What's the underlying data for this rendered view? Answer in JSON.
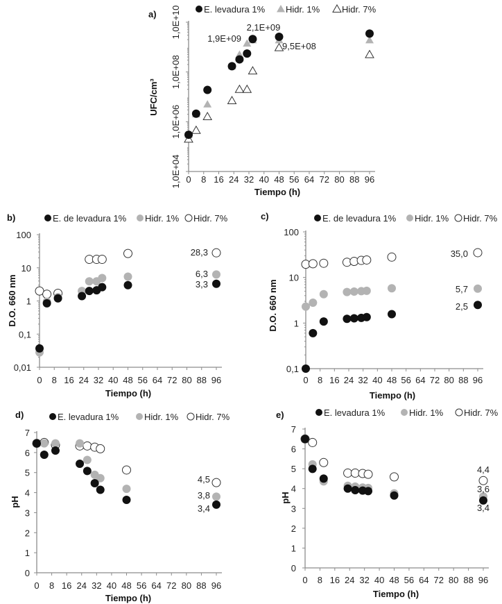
{
  "colors": {
    "e_levadura": "#111111",
    "hidr_1": "#b3b3b3",
    "hidr_7": "#ffffff",
    "axis": "#8c8c8c"
  },
  "chart_data": [
    {
      "panel": "a)",
      "type": "scatter",
      "xlabel": "Tiempo (h)",
      "ylabel": "UFC/cm³",
      "xlim": [
        0,
        96
      ],
      "xticks": [
        0,
        8,
        16,
        24,
        32,
        40,
        48,
        56,
        64,
        72,
        80,
        88,
        96
      ],
      "yscale": "log",
      "ylim": [
        10000,
        10000000000
      ],
      "yticks": [
        "1,0E+04",
        "1,0E+06",
        "1,0E+08",
        "1,0E+10"
      ],
      "ytick_values": [
        10000,
        1000000,
        100000000,
        10000000000
      ],
      "legend": "top",
      "series": [
        {
          "name": "E. levadura 1%",
          "marker": "filled-circle-black",
          "x": [
            0,
            4,
            10,
            23,
            27,
            31,
            34,
            48,
            96
          ],
          "y": [
            300000,
            2100000,
            19000000,
            170000000,
            320000000,
            550000000,
            2100000000,
            2600000000,
            3500000000
          ]
        },
        {
          "name": "Hidr. 1%",
          "marker": "filled-triangle-gray",
          "x": [
            0,
            4,
            10,
            23,
            27,
            31,
            34,
            48,
            96
          ],
          "y": [
            300000,
            2000000,
            5000000,
            170000000,
            500000000,
            1400000000,
            1900000000,
            1900000000,
            1900000000
          ]
        },
        {
          "name": "Hidr. 7%",
          "marker": "open-triangle",
          "x": [
            0,
            4,
            10,
            23,
            27,
            31,
            34,
            48,
            96
          ],
          "y": [
            200000,
            450000,
            1600000,
            7000000,
            20000000,
            20000000,
            110000000,
            950000000,
            500000000
          ]
        }
      ],
      "annotations": [
        {
          "text": "1,9E+09"
        },
        {
          "text": "2,1E+09"
        },
        {
          "text": "9,5E+08"
        }
      ]
    },
    {
      "panel": "b)",
      "type": "scatter",
      "xlabel": "Tiempo (h)",
      "ylabel": "D.O. 660 nm",
      "xlim": [
        0,
        96
      ],
      "xticks": [
        0,
        8,
        16,
        24,
        32,
        40,
        48,
        56,
        64,
        72,
        80,
        88,
        96
      ],
      "yscale": "log",
      "ylim": [
        0.01,
        100
      ],
      "yticks": [
        "0,01",
        "0,1",
        "1",
        "10",
        "100"
      ],
      "ytick_values": [
        0.01,
        0.1,
        1,
        10,
        100
      ],
      "legend": "top",
      "series": [
        {
          "name": "E. de levadura 1%",
          "marker": "filled-circle-black",
          "x": [
            0,
            4,
            10,
            23,
            27,
            31,
            34,
            48,
            96
          ],
          "y": [
            0.037,
            0.85,
            1.2,
            1.4,
            2.0,
            2.1,
            2.6,
            3.0,
            3.3
          ]
        },
        {
          "name": "Hidr. 1%",
          "marker": "filled-circle-gray",
          "x": [
            0,
            4,
            10,
            23,
            27,
            31,
            34,
            48,
            96
          ],
          "y": [
            0.028,
            0.95,
            1.3,
            2.0,
            3.9,
            3.9,
            4.9,
            5.4,
            6.3
          ]
        },
        {
          "name": "Hidr. 7%",
          "marker": "open-circle",
          "x": [
            0,
            4,
            10,
            27,
            31,
            34,
            48,
            96
          ],
          "y": [
            2.0,
            1.6,
            1.7,
            18,
            18,
            18,
            27,
            28.3
          ]
        }
      ],
      "annotations": [
        {
          "text": "28,3"
        },
        {
          "text": "6,3"
        },
        {
          "text": "3,3"
        }
      ]
    },
    {
      "panel": "c)",
      "type": "scatter",
      "xlabel": "Tiempo (h)",
      "ylabel": "D.O. 660 nm",
      "xlim": [
        0,
        96
      ],
      "xticks": [
        0,
        8,
        16,
        24,
        32,
        40,
        48,
        56,
        64,
        72,
        80,
        88,
        96
      ],
      "yscale": "log",
      "ylim": [
        0.1,
        100
      ],
      "yticks": [
        "0,1",
        "1",
        "10",
        "100"
      ],
      "ytick_values": [
        0.1,
        1,
        10,
        100
      ],
      "legend": "top",
      "series": [
        {
          "name": "E. de levadura 1%",
          "marker": "filled-circle-black",
          "x": [
            0,
            4,
            10,
            23,
            27,
            31,
            34,
            48,
            96
          ],
          "y": [
            0.1,
            0.6,
            1.08,
            1.24,
            1.27,
            1.3,
            1.35,
            1.57,
            2.5
          ]
        },
        {
          "name": "Hidr. 1%",
          "marker": "filled-circle-gray",
          "x": [
            0,
            4,
            10,
            23,
            27,
            31,
            34,
            48,
            96
          ],
          "y": [
            2.3,
            2.8,
            4.3,
            4.8,
            4.9,
            5.0,
            5.1,
            5.8,
            5.7
          ]
        },
        {
          "name": "Hidr. 7%",
          "marker": "open-circle",
          "x": [
            0,
            4,
            10,
            23,
            27,
            31,
            34,
            48,
            96
          ],
          "y": [
            19.5,
            20,
            20.5,
            21.6,
            22.5,
            23.7,
            24.2,
            28,
            35.0
          ]
        }
      ],
      "annotations": [
        {
          "text": "35,0"
        },
        {
          "text": "5,7"
        },
        {
          "text": "2,5"
        }
      ]
    },
    {
      "panel": "d)",
      "type": "scatter",
      "xlabel": "Tiempo (h)",
      "ylabel": "pH",
      "xlim": [
        0,
        96
      ],
      "xticks": [
        0,
        8,
        16,
        24,
        32,
        40,
        48,
        56,
        64,
        72,
        80,
        88,
        96
      ],
      "yscale": "linear",
      "ylim": [
        0,
        7
      ],
      "yticks": [
        "0",
        "1",
        "2",
        "3",
        "4",
        "5",
        "6",
        "7"
      ],
      "ytick_values": [
        0,
        1,
        2,
        3,
        4,
        5,
        6,
        7
      ],
      "legend": "top",
      "series": [
        {
          "name": "E. levadura 1%",
          "marker": "filled-circle-black",
          "x": [
            0,
            4,
            10,
            23,
            27,
            31,
            34,
            48,
            96
          ],
          "y": [
            6.46,
            5.89,
            6.1,
            5.44,
            5.08,
            4.47,
            4.14,
            3.64,
            3.4
          ]
        },
        {
          "name": "Hidr. 1%",
          "marker": "filled-circle-gray",
          "x": [
            0,
            4,
            10,
            23,
            27,
            31,
            34,
            48,
            96
          ],
          "y": [
            6.46,
            6.46,
            6.46,
            6.46,
            5.63,
            4.89,
            4.72,
            4.19,
            3.8
          ]
        },
        {
          "name": "Hidr. 7%",
          "marker": "open-circle",
          "x": [
            0,
            4,
            10,
            23,
            27,
            31,
            34,
            48,
            96
          ],
          "y": [
            6.46,
            6.5,
            6.38,
            6.33,
            6.33,
            6.27,
            6.19,
            5.13,
            4.5
          ]
        }
      ],
      "annotations": [
        {
          "text": "4,5"
        },
        {
          "text": "3,8"
        },
        {
          "text": "3,4"
        }
      ]
    },
    {
      "panel": "e)",
      "type": "scatter",
      "xlabel": "Tiempo (h)",
      "ylabel": "pH",
      "xlim": [
        0,
        96
      ],
      "xticks": [
        0,
        8,
        16,
        24,
        32,
        40,
        48,
        56,
        64,
        72,
        80,
        88,
        96
      ],
      "yscale": "linear",
      "ylim": [
        0,
        7
      ],
      "yticks": [
        "0",
        "1",
        "2",
        "3",
        "4",
        "5",
        "6",
        "7"
      ],
      "ytick_values": [
        0,
        1,
        2,
        3,
        4,
        5,
        6,
        7
      ],
      "legend": "top",
      "series": [
        {
          "name": "E. levadura 1%",
          "marker": "filled-circle-black",
          "x": [
            0,
            4,
            10,
            23,
            27,
            31,
            34,
            48,
            96
          ],
          "y": [
            6.5,
            4.99,
            4.5,
            4.0,
            3.92,
            3.9,
            3.87,
            3.65,
            3.4
          ]
        },
        {
          "name": "Hidr. 1%",
          "marker": "filled-circle-gray",
          "x": [
            0,
            4,
            10,
            23,
            27,
            31,
            34,
            48,
            96
          ],
          "y": [
            6.5,
            5.22,
            4.36,
            4.14,
            4.1,
            4.05,
            4.03,
            3.76,
            3.6
          ]
        },
        {
          "name": "Hidr. 7%",
          "marker": "open-circle",
          "x": [
            0,
            4,
            10,
            23,
            27,
            31,
            34,
            48,
            96
          ],
          "y": [
            6.5,
            6.32,
            5.31,
            4.78,
            4.78,
            4.76,
            4.72,
            4.59,
            4.4
          ]
        }
      ],
      "annotations": [
        {
          "text": "4,4"
        },
        {
          "text": "3,6"
        },
        {
          "text": "3,4"
        }
      ]
    }
  ]
}
